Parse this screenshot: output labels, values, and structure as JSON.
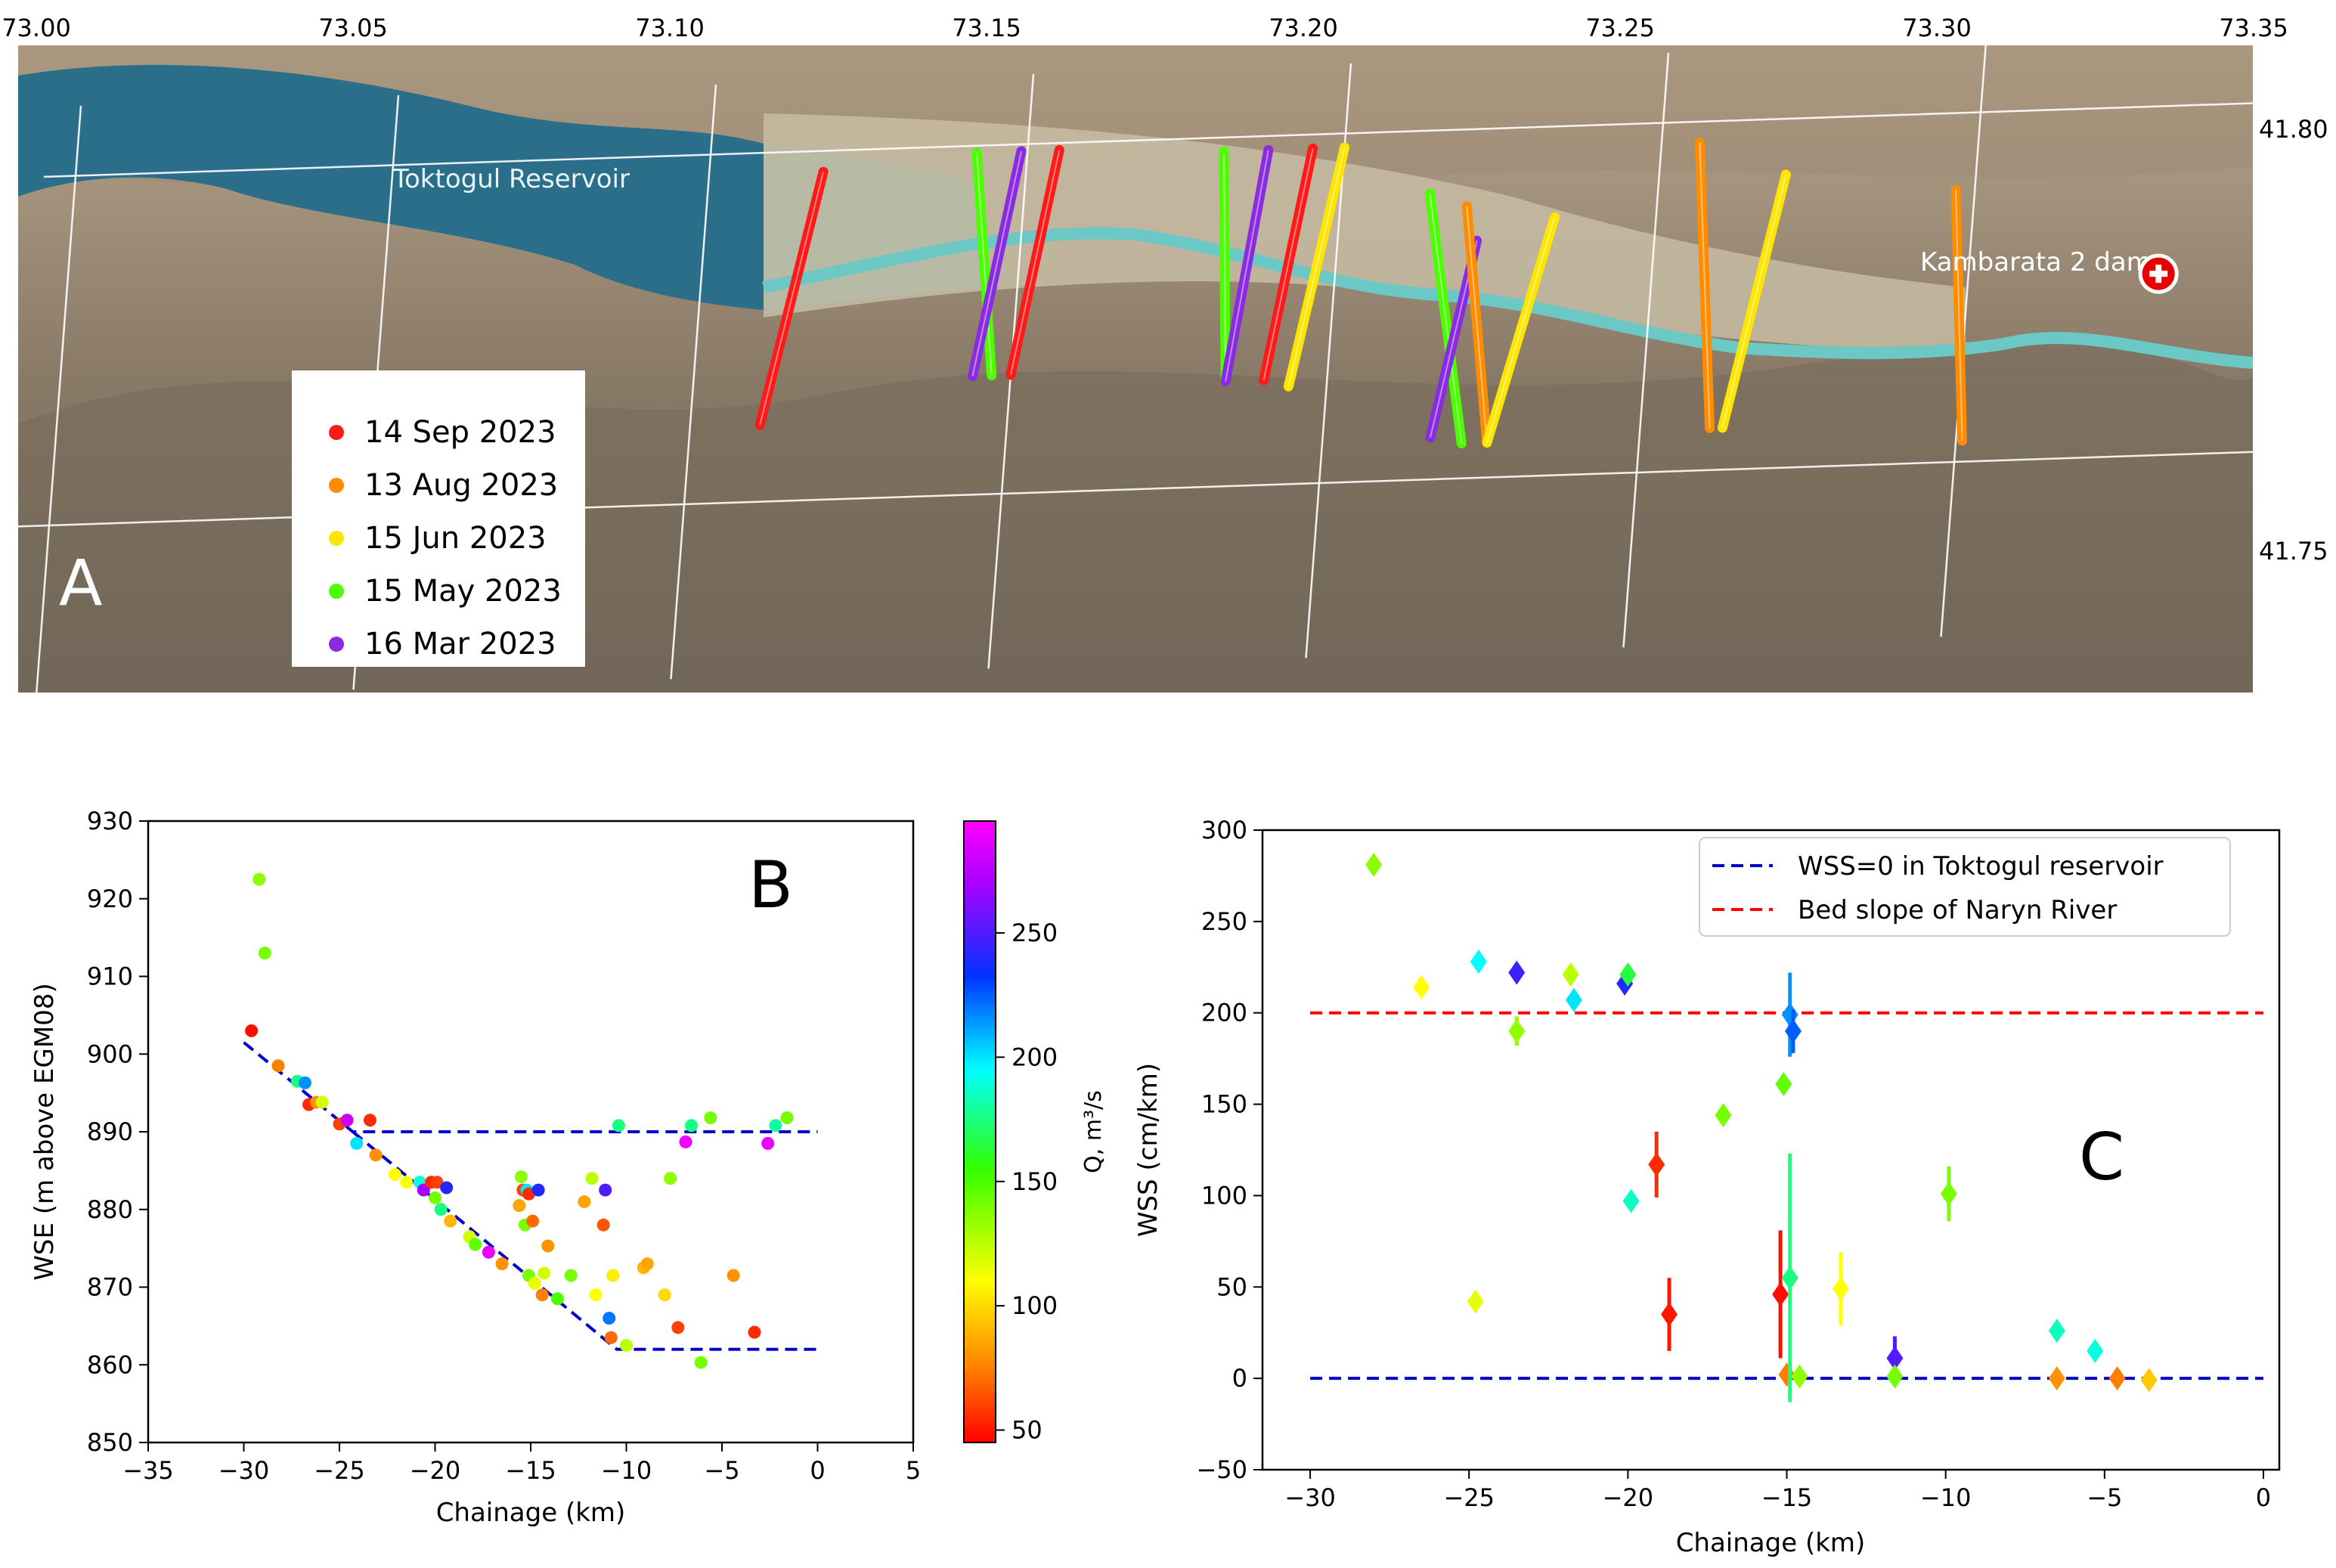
{
  "colors": {
    "sep": "#ff1a1a",
    "aug": "#ff8c00",
    "jun": "#ffe600",
    "may": "#4cff00",
    "mar": "#8a2be2",
    "wss0": "#0000cc",
    "bed": "#ff0000"
  },
  "panelA": {
    "letter": "A",
    "lon_ticks": [
      "73.00",
      "73.05",
      "73.10",
      "73.15",
      "73.20",
      "73.25",
      "73.30",
      "73.35"
    ],
    "lat_ticks": [
      "41.80",
      "41.75"
    ],
    "reservoir_label": "Toktogul Reservoir",
    "dam_label": "Kambarata 2 dam",
    "legend": [
      {
        "label": "14 Sep 2023",
        "key": "sep"
      },
      {
        "label": "13 Aug 2023",
        "key": "aug"
      },
      {
        "label": "15 Jun 2023",
        "key": "jun"
      },
      {
        "label": "15 May 2023",
        "key": "may"
      },
      {
        "label": "16 Mar 2023",
        "key": "mar"
      }
    ],
    "tracks": [
      {
        "key": "sep",
        "lon": [
          73.118,
          73.111
        ],
        "lat": [
          41.797,
          41.761
        ]
      },
      {
        "key": "may",
        "lon": [
          73.142,
          73.147
        ],
        "lat": [
          41.799,
          41.767
        ]
      },
      {
        "key": "mar",
        "lon": [
          73.149,
          73.144
        ],
        "lat": [
          41.799,
          41.767
        ]
      },
      {
        "key": "sep",
        "lon": [
          73.155,
          73.15
        ],
        "lat": [
          41.799,
          41.767
        ]
      },
      {
        "key": "may",
        "lon": [
          73.181,
          73.184
        ],
        "lat": [
          41.798,
          41.765
        ]
      },
      {
        "key": "mar",
        "lon": [
          73.188,
          73.184
        ],
        "lat": [
          41.798,
          41.765
        ]
      },
      {
        "key": "sep",
        "lon": [
          73.195,
          73.19
        ],
        "lat": [
          41.798,
          41.765
        ]
      },
      {
        "key": "jun",
        "lon": [
          73.2,
          73.194
        ],
        "lat": [
          41.798,
          41.764
        ]
      },
      {
        "key": "may",
        "lon": [
          73.214,
          73.222
        ],
        "lat": [
          41.791,
          41.755
        ]
      },
      {
        "key": "mar",
        "lon": [
          73.222,
          73.217
        ],
        "lat": [
          41.784,
          41.756
        ]
      },
      {
        "key": "aug",
        "lon": [
          73.22,
          73.226
        ],
        "lat": [
          41.789,
          41.755
        ]
      },
      {
        "key": "jun",
        "lon": [
          73.234,
          73.226
        ],
        "lat": [
          41.787,
          41.755
        ]
      },
      {
        "key": "aug",
        "lon": [
          73.256,
          73.261
        ],
        "lat": [
          41.797,
          41.756
        ]
      },
      {
        "key": "jun",
        "lon": [
          73.27,
          73.263
        ],
        "lat": [
          41.792,
          41.756
        ]
      },
      {
        "key": "aug",
        "lon": [
          73.297,
          73.301
        ],
        "lat": [
          41.789,
          41.753
        ]
      }
    ],
    "dam": {
      "lon": 73.33,
      "lat": 41.776
    }
  },
  "chart_data": [
    {
      "type": "scatter",
      "panel": "B",
      "xlabel": "Chainage (km)",
      "ylabel": "WSE (m above EGM08)",
      "xlim": [
        -35,
        5
      ],
      "ylim": [
        850,
        930
      ],
      "xticks": [
        -35,
        -30,
        -25,
        -20,
        -15,
        -10,
        -5,
        0,
        5
      ],
      "yticks": [
        850,
        860,
        870,
        880,
        890,
        900,
        910,
        920,
        930
      ],
      "colorbar": {
        "label": "Q, m³/s",
        "min": 45,
        "max": 295,
        "ticks": [
          50,
          100,
          150,
          200,
          250
        ]
      },
      "lines": [
        {
          "x": [
            -30,
            -24.3,
            0
          ],
          "y": [
            901.5,
            890,
            890
          ],
          "style": "dashed",
          "color_key": "wss0"
        },
        {
          "x": [
            -24.3,
            -10.5,
            0
          ],
          "y": [
            890,
            862,
            862
          ],
          "style": "dashed",
          "color_key": "wss0"
        }
      ],
      "points": [
        [
          -29.6,
          903,
          48
        ],
        [
          -29.2,
          922.5,
          135
        ],
        [
          -28.9,
          913,
          140
        ],
        [
          -28.2,
          898.5,
          75
        ],
        [
          -27.2,
          896.5,
          175
        ],
        [
          -26.8,
          896.3,
          215
        ],
        [
          -26.6,
          893.5,
          55
        ],
        [
          -26.2,
          893.8,
          80
        ],
        [
          -25.9,
          893.8,
          120
        ],
        [
          -25,
          891,
          60
        ],
        [
          -24.6,
          891.5,
          280
        ],
        [
          -24.1,
          888.5,
          200
        ],
        [
          -23.4,
          891.5,
          55
        ],
        [
          -23.1,
          887,
          80
        ],
        [
          -22.1,
          884.5,
          110
        ],
        [
          -21.5,
          883.5,
          110
        ],
        [
          -20.8,
          883.5,
          190
        ],
        [
          -20.6,
          882.5,
          270
        ],
        [
          -20.2,
          883.5,
          55
        ],
        [
          -20,
          881.5,
          140
        ],
        [
          -19.9,
          883.5,
          60
        ],
        [
          -19.7,
          880,
          175
        ],
        [
          -19.4,
          882.8,
          240
        ],
        [
          -19.2,
          878.5,
          90
        ],
        [
          -18.2,
          876.5,
          120
        ],
        [
          -17.9,
          875.5,
          145
        ],
        [
          -17.2,
          874.5,
          290
        ],
        [
          -16.5,
          873,
          80
        ],
        [
          -15.6,
          880.5,
          85
        ],
        [
          -15.5,
          884.2,
          135
        ],
        [
          -15.4,
          882.5,
          60
        ],
        [
          -15.3,
          878,
          140
        ],
        [
          -15.2,
          882.5,
          200
        ],
        [
          -15.1,
          882,
          55
        ],
        [
          -15.1,
          871.5,
          140
        ],
        [
          -14.9,
          878.5,
          70
        ],
        [
          -14.8,
          870.5,
          115
        ],
        [
          -14.6,
          882.5,
          240
        ],
        [
          -14.4,
          869,
          75
        ],
        [
          -14.3,
          871.8,
          120
        ],
        [
          -14.1,
          875.3,
          80
        ],
        [
          -13.6,
          868.5,
          150
        ],
        [
          -12.9,
          871.5,
          140
        ],
        [
          -12.2,
          881,
          85
        ],
        [
          -11.8,
          884,
          125
        ],
        [
          -11.6,
          869,
          110
        ],
        [
          -11.2,
          878,
          65
        ],
        [
          -11.1,
          882.5,
          250
        ],
        [
          -10.9,
          866,
          220
        ],
        [
          -10.8,
          863.5,
          70
        ],
        [
          -10.7,
          871.5,
          105
        ],
        [
          -10.4,
          890.8,
          175
        ],
        [
          -10,
          862.5,
          125
        ],
        [
          -9.1,
          872.5,
          90
        ],
        [
          -8.9,
          873,
          85
        ],
        [
          -8,
          869,
          100
        ],
        [
          -7.7,
          884,
          135
        ],
        [
          -7.3,
          864.8,
          60
        ],
        [
          -6.9,
          888.7,
          290
        ],
        [
          -6.6,
          890.8,
          175
        ],
        [
          -6.1,
          860.3,
          140
        ],
        [
          -5.6,
          891.8,
          140
        ],
        [
          -4.4,
          871.5,
          80
        ],
        [
          -3.3,
          864.2,
          55
        ],
        [
          -2.6,
          888.5,
          290
        ],
        [
          -2.2,
          890.8,
          180
        ],
        [
          -1.6,
          891.8,
          140
        ]
      ]
    },
    {
      "type": "scatter",
      "panel": "C",
      "xlabel": "Chainage (km)",
      "ylabel": "WSS (cm/km)",
      "xlim": [
        -31.5,
        0.5
      ],
      "ylim": [
        -50,
        300
      ],
      "xticks": [
        -30,
        -25,
        -20,
        -15,
        -10,
        -5,
        0
      ],
      "yticks": [
        -50,
        0,
        50,
        100,
        150,
        200,
        250,
        300
      ],
      "legend": [
        {
          "label": "WSS=0 in Toktogul reservoir",
          "color_key": "wss0"
        },
        {
          "label": "Bed slope of Naryn River",
          "color_key": "bed"
        }
      ],
      "lines": [
        {
          "x": [
            -30,
            0
          ],
          "y": [
            0,
            0
          ],
          "style": "dashed",
          "color_key": "wss0"
        },
        {
          "x": [
            -30,
            0
          ],
          "y": [
            200,
            200
          ],
          "style": "dashed",
          "color_key": "bed"
        }
      ],
      "points": [
        {
          "x": -28,
          "y": 281,
          "err": 0,
          "q": 135
        },
        {
          "x": -26.5,
          "y": 214,
          "err": 0,
          "q": 110
        },
        {
          "x": -24.8,
          "y": 42,
          "err": 0,
          "q": 115
        },
        {
          "x": -24.7,
          "y": 228,
          "err": 0,
          "q": 195
        },
        {
          "x": -23.5,
          "y": 222,
          "err": 0,
          "q": 245
        },
        {
          "x": -23.5,
          "y": 190,
          "err": 8,
          "q": 135
        },
        {
          "x": -21.8,
          "y": 221,
          "err": 0,
          "q": 125
        },
        {
          "x": -21.7,
          "y": 207,
          "err": 0,
          "q": 200
        },
        {
          "x": -20.1,
          "y": 216,
          "err": 0,
          "q": 240
        },
        {
          "x": -20,
          "y": 221,
          "err": 0,
          "q": 165
        },
        {
          "x": -19.9,
          "y": 97,
          "err": 0,
          "q": 185
        },
        {
          "x": -19.1,
          "y": 117,
          "err": 18,
          "q": 55
        },
        {
          "x": -18.7,
          "y": 35,
          "err": 20,
          "q": 50
        },
        {
          "x": -17,
          "y": 144,
          "err": 0,
          "q": 140
        },
        {
          "x": -15.2,
          "y": 46,
          "err": 35,
          "q": 48
        },
        {
          "x": -15.1,
          "y": 161,
          "err": 0,
          "q": 145
        },
        {
          "x": -15,
          "y": 2,
          "err": 0,
          "q": 75
        },
        {
          "x": -14.9,
          "y": 199,
          "err": 23,
          "q": 215
        },
        {
          "x": -14.9,
          "y": 55,
          "err": 68,
          "q": 175
        },
        {
          "x": -14.8,
          "y": 190,
          "err": 12,
          "q": 225
        },
        {
          "x": -14.6,
          "y": 1,
          "err": 0,
          "q": 135
        },
        {
          "x": -13.3,
          "y": 49,
          "err": 20,
          "q": 110
        },
        {
          "x": -11.6,
          "y": 11,
          "err": 12,
          "q": 250
        },
        {
          "x": -11.6,
          "y": 1,
          "err": 0,
          "q": 140
        },
        {
          "x": -9.9,
          "y": 101,
          "err": 15,
          "q": 140
        },
        {
          "x": -6.5,
          "y": 26,
          "err": 0,
          "q": 185
        },
        {
          "x": -6.5,
          "y": 0,
          "err": 0,
          "q": 80
        },
        {
          "x": -5.3,
          "y": 15,
          "err": 0,
          "q": 190
        },
        {
          "x": -4.6,
          "y": 0,
          "err": 0,
          "q": 75
        },
        {
          "x": -3.6,
          "y": -1,
          "err": 0,
          "q": 95
        }
      ]
    }
  ],
  "panelB_letter": "B",
  "panelC_letter": "C"
}
